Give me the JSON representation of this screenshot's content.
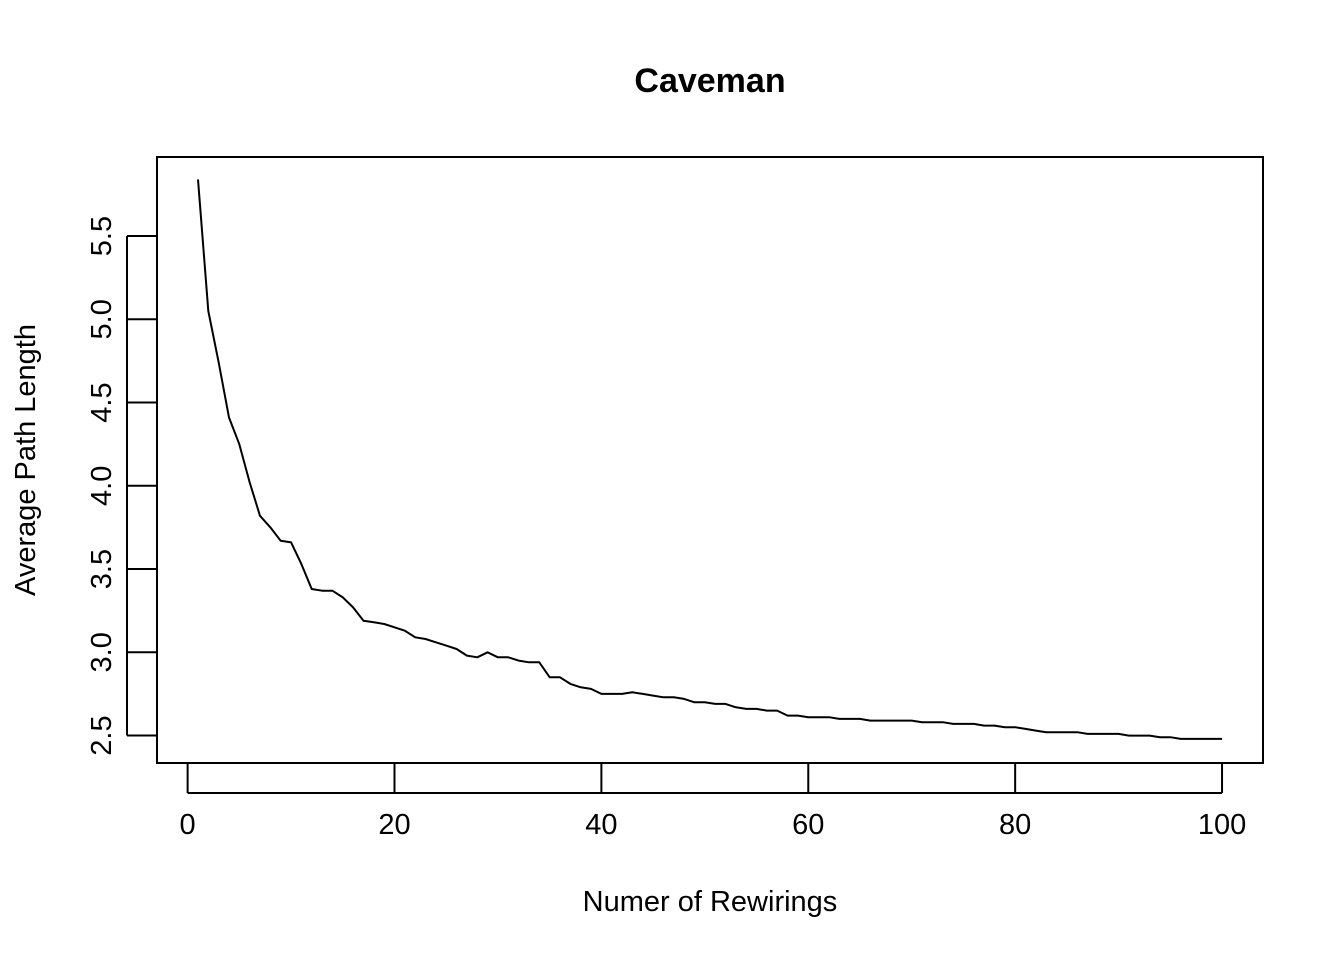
{
  "chart_data": {
    "type": "line",
    "title": "Caveman",
    "xlabel": "Numer of Rewirings",
    "ylabel": "Average Path Length",
    "xlim": [
      1,
      100
    ],
    "ylim": [
      2.47,
      5.84
    ],
    "x_ticks": [
      0,
      20,
      40,
      60,
      80,
      100
    ],
    "x_tick_labels": [
      "0",
      "20",
      "40",
      "60",
      "80",
      "100"
    ],
    "y_ticks": [
      2.5,
      3.0,
      3.5,
      4.0,
      4.5,
      5.0,
      5.5
    ],
    "y_tick_labels": [
      "2.5",
      "3.0",
      "3.5",
      "4.0",
      "4.5",
      "5.0",
      "5.5"
    ],
    "grid": false,
    "legend": "none",
    "series": [
      {
        "color": "#000000",
        "x": [
          1,
          2,
          3,
          4,
          5,
          6,
          7,
          8,
          9,
          10,
          11,
          12,
          13,
          14,
          15,
          16,
          17,
          18,
          19,
          20,
          21,
          22,
          23,
          24,
          25,
          26,
          27,
          28,
          29,
          30,
          31,
          32,
          33,
          34,
          35,
          36,
          37,
          38,
          39,
          40,
          41,
          42,
          43,
          44,
          45,
          46,
          47,
          48,
          49,
          50,
          51,
          52,
          53,
          54,
          55,
          56,
          57,
          58,
          59,
          60,
          61,
          62,
          63,
          64,
          65,
          66,
          67,
          68,
          69,
          70,
          71,
          72,
          73,
          74,
          75,
          76,
          77,
          78,
          79,
          80,
          81,
          82,
          83,
          84,
          85,
          86,
          87,
          88,
          89,
          90,
          91,
          92,
          93,
          94,
          95,
          96,
          97,
          98,
          99,
          100
        ],
        "y": [
          5.84,
          5.05,
          4.74,
          4.41,
          4.25,
          4.02,
          3.82,
          3.75,
          3.67,
          3.66,
          3.53,
          3.38,
          3.37,
          3.37,
          3.33,
          3.27,
          3.19,
          3.18,
          3.17,
          3.15,
          3.13,
          3.09,
          3.08,
          3.06,
          3.04,
          3.02,
          2.98,
          2.97,
          3.0,
          2.97,
          2.97,
          2.95,
          2.94,
          2.94,
          2.85,
          2.85,
          2.81,
          2.79,
          2.78,
          2.75,
          2.75,
          2.75,
          2.76,
          2.75,
          2.74,
          2.73,
          2.73,
          2.72,
          2.7,
          2.7,
          2.69,
          2.69,
          2.67,
          2.66,
          2.66,
          2.65,
          2.65,
          2.62,
          2.62,
          2.61,
          2.61,
          2.61,
          2.6,
          2.6,
          2.6,
          2.59,
          2.59,
          2.59,
          2.59,
          2.59,
          2.58,
          2.58,
          2.58,
          2.57,
          2.57,
          2.57,
          2.56,
          2.56,
          2.55,
          2.55,
          2.54,
          2.53,
          2.52,
          2.52,
          2.52,
          2.52,
          2.51,
          2.51,
          2.51,
          2.51,
          2.5,
          2.5,
          2.5,
          2.49,
          2.49,
          2.48,
          2.48,
          2.48,
          2.48,
          2.48
        ]
      }
    ]
  }
}
